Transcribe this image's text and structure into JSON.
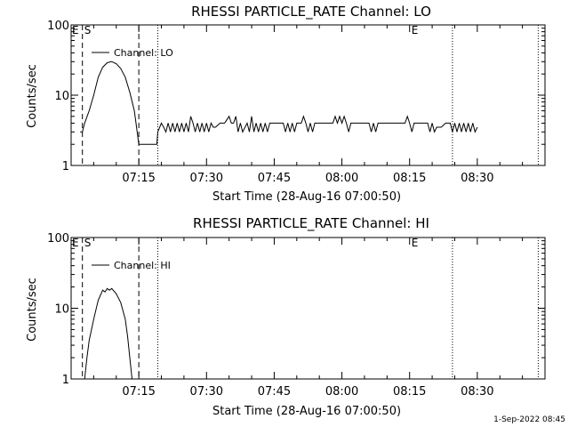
{
  "timestamp": "1-Sep-2022 08:45",
  "chart_data": [
    {
      "type": "line",
      "title": "RHESSI PARTICLE_RATE Channel: LO",
      "xlabel": "Start Time (28-Aug-16 07:00:50)",
      "ylabel": "Counts/sec",
      "yscale": "log",
      "ylim": [
        1,
        100
      ],
      "yticks": [
        1,
        10,
        100
      ],
      "ytick_labels": [
        "1",
        "10",
        "100"
      ],
      "xlim": [
        0,
        105
      ],
      "xticks": [
        15,
        30,
        45,
        60,
        75,
        90
      ],
      "xtick_labels": [
        "07:15",
        "07:30",
        "07:45",
        "08:00",
        "08:15",
        "08:30"
      ],
      "grid": false,
      "legend": "top-left",
      "series": [
        {
          "name": "Channel: LO",
          "values": [
            [
              2,
              3
            ],
            [
              2.5,
              3
            ],
            [
              3,
              4
            ],
            [
              4,
              6
            ],
            [
              5,
              10
            ],
            [
              6,
              18
            ],
            [
              7,
              25
            ],
            [
              8,
              29
            ],
            [
              9,
              30
            ],
            [
              10,
              28
            ],
            [
              11,
              24
            ],
            [
              12,
              18
            ],
            [
              13,
              11
            ],
            [
              14,
              6
            ],
            [
              14.5,
              3.5
            ],
            [
              15,
              2
            ],
            [
              16,
              2
            ],
            [
              17,
              2
            ],
            [
              18,
              2
            ],
            [
              19,
              2
            ],
            [
              19.2,
              3
            ],
            [
              20,
              4
            ],
            [
              20.5,
              3.5
            ],
            [
              21,
              3
            ],
            [
              21.5,
              4
            ],
            [
              22,
              3
            ],
            [
              22.5,
              4
            ],
            [
              23,
              3
            ],
            [
              23.5,
              4
            ],
            [
              24,
              3
            ],
            [
              24.5,
              4
            ],
            [
              25,
              3
            ],
            [
              25.5,
              4
            ],
            [
              26,
              3
            ],
            [
              26.5,
              5
            ],
            [
              27,
              4
            ],
            [
              27.5,
              3
            ],
            [
              28,
              4
            ],
            [
              28.5,
              3
            ],
            [
              29,
              4
            ],
            [
              29.5,
              3
            ],
            [
              30,
              4
            ],
            [
              30.5,
              3
            ],
            [
              31,
              4
            ],
            [
              31.5,
              3.5
            ],
            [
              32,
              3.5
            ],
            [
              33,
              4
            ],
            [
              34,
              4
            ],
            [
              35,
              5
            ],
            [
              35.5,
              4
            ],
            [
              36,
              4
            ],
            [
              36.5,
              5
            ],
            [
              37,
              3
            ],
            [
              37.5,
              4
            ],
            [
              38,
              3
            ],
            [
              39,
              4
            ],
            [
              39.5,
              3
            ],
            [
              40,
              5
            ],
            [
              40.5,
              3
            ],
            [
              41,
              4
            ],
            [
              41.5,
              3
            ],
            [
              42,
              4
            ],
            [
              42.5,
              3
            ],
            [
              43,
              4
            ],
            [
              43.5,
              3
            ],
            [
              44,
              4
            ],
            [
              45,
              4
            ],
            [
              46,
              4
            ],
            [
              47,
              4
            ],
            [
              47.5,
              3
            ],
            [
              48,
              4
            ],
            [
              48.5,
              3
            ],
            [
              49,
              4
            ],
            [
              49.5,
              3
            ],
            [
              50,
              4
            ],
            [
              51,
              4
            ],
            [
              51.5,
              5
            ],
            [
              52,
              4
            ],
            [
              52.5,
              3
            ],
            [
              53,
              4
            ],
            [
              53.5,
              3
            ],
            [
              54,
              4
            ],
            [
              55,
              4
            ],
            [
              56,
              4
            ],
            [
              57,
              4
            ],
            [
              58,
              4
            ],
            [
              58.5,
              5
            ],
            [
              59,
              4
            ],
            [
              59.5,
              5
            ],
            [
              60,
              4
            ],
            [
              60.5,
              5
            ],
            [
              61,
              4
            ],
            [
              61.5,
              3
            ],
            [
              62,
              4
            ],
            [
              63,
              4
            ],
            [
              64,
              4
            ],
            [
              65,
              4
            ],
            [
              66,
              4
            ],
            [
              66.5,
              3
            ],
            [
              67,
              4
            ],
            [
              67.5,
              3
            ],
            [
              68,
              4
            ],
            [
              69,
              4
            ],
            [
              70,
              4
            ],
            [
              71,
              4
            ],
            [
              72,
              4
            ],
            [
              73,
              4
            ],
            [
              74,
              4
            ],
            [
              74.5,
              5
            ],
            [
              75,
              4
            ],
            [
              75.5,
              3
            ],
            [
              76,
              4
            ],
            [
              77,
              4
            ],
            [
              78,
              4
            ],
            [
              79,
              4
            ],
            [
              79.5,
              3
            ],
            [
              80,
              4
            ],
            [
              80.5,
              3
            ],
            [
              81,
              3.5
            ],
            [
              82,
              3.5
            ],
            [
              83,
              4
            ],
            [
              84,
              4
            ],
            [
              84.5,
              3
            ],
            [
              85,
              4
            ],
            [
              85.5,
              3
            ],
            [
              86,
              4
            ],
            [
              86.5,
              3
            ],
            [
              87,
              4
            ],
            [
              87.5,
              3
            ],
            [
              88,
              4
            ],
            [
              88.5,
              3
            ],
            [
              89,
              4
            ],
            [
              89.5,
              3
            ],
            [
              90,
              3.5
            ]
          ]
        }
      ],
      "annotations": [
        {
          "text": "E",
          "x": 0
        },
        {
          "text": "S",
          "x": 2.5
        },
        {
          "text": "E",
          "x": 75
        }
      ],
      "vlines": [
        {
          "x": 2.5,
          "style": "dashed"
        },
        {
          "x": 15,
          "style": "dashed"
        },
        {
          "x": 19.2,
          "style": "dotted"
        },
        {
          "x": 84.5,
          "style": "dotted"
        },
        {
          "x": 103.5,
          "style": "dotted"
        }
      ]
    },
    {
      "type": "line",
      "title": "RHESSI PARTICLE_RATE Channel: HI",
      "xlabel": "Start Time (28-Aug-16 07:00:50)",
      "ylabel": "Counts/sec",
      "yscale": "log",
      "ylim": [
        1,
        100
      ],
      "yticks": [
        1,
        10,
        100
      ],
      "ytick_labels": [
        "1",
        "10",
        "100"
      ],
      "xlim": [
        0,
        105
      ],
      "xticks": [
        15,
        30,
        45,
        60,
        75,
        90
      ],
      "xtick_labels": [
        "07:15",
        "07:30",
        "07:45",
        "08:00",
        "08:15",
        "08:30"
      ],
      "grid": false,
      "legend": "top-left",
      "series": [
        {
          "name": "Channel: HI",
          "values": [
            [
              3,
              1
            ],
            [
              3.5,
              2
            ],
            [
              4,
              3.5
            ],
            [
              5,
              7
            ],
            [
              6,
              13
            ],
            [
              7,
              18
            ],
            [
              7.5,
              17
            ],
            [
              8,
              19
            ],
            [
              8.5,
              18
            ],
            [
              9,
              19
            ],
            [
              10,
              16
            ],
            [
              11,
              12
            ],
            [
              12,
              7
            ],
            [
              12.5,
              4
            ],
            [
              13,
              2
            ],
            [
              13.5,
              1
            ]
          ]
        }
      ],
      "annotations": [
        {
          "text": "E",
          "x": 0
        },
        {
          "text": "S",
          "x": 2.5
        },
        {
          "text": "E",
          "x": 75
        }
      ],
      "vlines": [
        {
          "x": 2.5,
          "style": "dashed"
        },
        {
          "x": 15,
          "style": "dashed"
        },
        {
          "x": 19.2,
          "style": "dotted"
        },
        {
          "x": 84.5,
          "style": "dotted"
        },
        {
          "x": 103.5,
          "style": "dotted"
        }
      ]
    }
  ]
}
